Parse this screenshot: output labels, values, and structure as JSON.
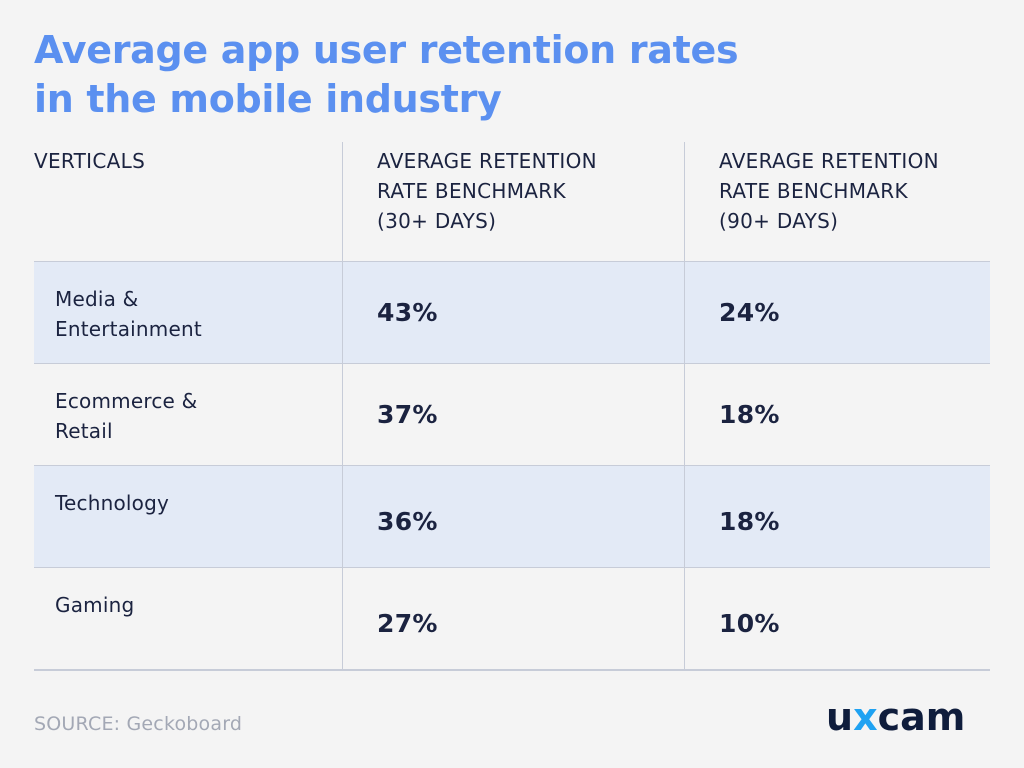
{
  "title": {
    "line1": "Average app user retention rates",
    "line2": "in the mobile industry"
  },
  "chart_data": {
    "type": "table",
    "columns": [
      {
        "lines": [
          "VERTICALS"
        ]
      },
      {
        "lines": [
          "AVERAGE RETENTION",
          "RATE BENCHMARK",
          "(30+ DAYS)"
        ]
      },
      {
        "lines": [
          "AVERAGE RETENTION",
          "RATE BENCHMARK",
          "(90+ DAYS)"
        ]
      }
    ],
    "rows": [
      {
        "vertical": [
          "Media &",
          "Entertainment"
        ],
        "d30": "43%",
        "d90": "24%"
      },
      {
        "vertical": [
          "Ecommerce &",
          "Retail"
        ],
        "d30": "37%",
        "d90": "18%"
      },
      {
        "vertical": [
          "Technology"
        ],
        "d30": "36%",
        "d90": "18%"
      },
      {
        "vertical": [
          "Gaming"
        ],
        "d30": "27%",
        "d90": "10%"
      }
    ]
  },
  "source": "SOURCE: Geckoboard",
  "logo": {
    "part1": "u",
    "part2": "x",
    "part3": "cam"
  },
  "colors": {
    "title": "#5b90f0",
    "text": "#1b2340",
    "shaded_row": "#e3eaf6",
    "divider": "#c7ccd8",
    "source": "#a3a8b5",
    "logo_accent": "#1fa2f2"
  }
}
